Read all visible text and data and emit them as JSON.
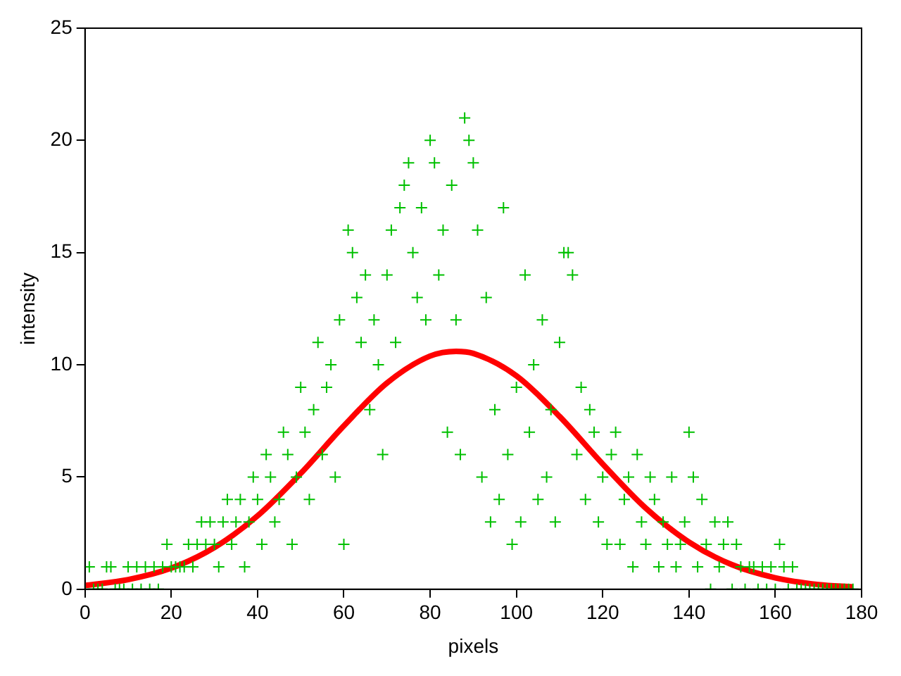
{
  "chart_data": {
    "type": "scatter",
    "xlabel": "pixels",
    "ylabel": "intensity",
    "xlim": [
      0,
      180
    ],
    "xticks": [
      0,
      20,
      40,
      60,
      80,
      100,
      120,
      140,
      160,
      180
    ],
    "ylim": [
      0,
      25
    ],
    "yticks": [
      0,
      5,
      10,
      15,
      20,
      25
    ],
    "grid": false,
    "legend": false,
    "marker": "cross",
    "series": [
      {
        "color": "#00c000",
        "x": [
          0,
          1,
          2,
          3,
          4,
          5,
          6,
          7,
          8,
          9,
          10,
          11,
          12,
          13,
          14,
          15,
          16,
          17,
          18,
          19,
          20,
          21,
          22,
          23,
          24,
          25,
          26,
          27,
          28,
          29,
          30,
          31,
          32,
          33,
          34,
          35,
          36,
          37,
          38,
          39,
          40,
          41,
          42,
          43,
          44,
          45,
          46,
          47,
          48,
          49,
          50,
          51,
          52,
          53,
          54,
          55,
          56,
          57,
          58,
          59,
          60,
          61,
          62,
          63,
          64,
          65,
          66,
          67,
          68,
          69,
          70,
          71,
          72,
          73,
          74,
          75,
          76,
          77,
          78,
          79,
          80,
          81,
          82,
          83,
          84,
          85,
          86,
          87,
          88,
          89,
          90,
          91,
          92,
          93,
          94,
          95,
          96,
          97,
          98,
          99,
          100,
          101,
          102,
          103,
          104,
          105,
          106,
          107,
          108,
          109,
          110,
          111,
          112,
          113,
          114,
          115,
          116,
          117,
          118,
          119,
          120,
          121,
          122,
          123,
          124,
          125,
          126,
          127,
          128,
          129,
          130,
          131,
          132,
          133,
          134,
          135,
          136,
          137,
          138,
          139,
          140,
          141,
          142,
          143,
          144,
          145,
          146,
          147,
          148,
          149,
          150,
          151,
          152,
          153,
          154,
          155,
          156,
          157,
          158,
          159,
          160,
          161,
          162,
          163,
          164,
          165,
          166,
          167,
          168,
          169,
          170,
          171,
          172,
          173,
          174,
          175,
          176,
          177,
          178
        ],
        "values": [
          0,
          1,
          0,
          0,
          0,
          1,
          1,
          0,
          0,
          0,
          1,
          0,
          1,
          0,
          1,
          0,
          1,
          0,
          1,
          2,
          1,
          1,
          1,
          1,
          2,
          1,
          2,
          3,
          2,
          3,
          2,
          1,
          3,
          4,
          2,
          3,
          4,
          1,
          3,
          5,
          4,
          2,
          6,
          5,
          3,
          4,
          7,
          6,
          2,
          5,
          9,
          7,
          4,
          8,
          11,
          6,
          9,
          10,
          5,
          12,
          2,
          16,
          15,
          13,
          11,
          14,
          8,
          12,
          10,
          6,
          14,
          16,
          11,
          17,
          18,
          19,
          15,
          13,
          17,
          12,
          20,
          19,
          14,
          16,
          7,
          18,
          12,
          6,
          21,
          20,
          19,
          16,
          5,
          13,
          3,
          8,
          4,
          17,
          6,
          2,
          9,
          3,
          14,
          7,
          10,
          4,
          12,
          5,
          8,
          3,
          11,
          15,
          15,
          14,
          6,
          9,
          4,
          8,
          7,
          3,
          5,
          2,
          6,
          7,
          2,
          4,
          5,
          1,
          6,
          3,
          2,
          5,
          4,
          1,
          3,
          2,
          5,
          1,
          2,
          3,
          7,
          5,
          1,
          4,
          2,
          0,
          3,
          1,
          2,
          3,
          0,
          2,
          1,
          0,
          1,
          1,
          0,
          1,
          0,
          1,
          0,
          2,
          1,
          0,
          1,
          0,
          0,
          0,
          0,
          0,
          0,
          0,
          0,
          0,
          0,
          0,
          0,
          0,
          0
        ]
      },
      {
        "type": "line",
        "color": "#ff0000",
        "marker": "none",
        "x": [
          0,
          10,
          20,
          30,
          40,
          50,
          60,
          70,
          80,
          86,
          90,
          100,
          110,
          120,
          130,
          140,
          150,
          160,
          170,
          178
        ],
        "values": [
          0.17,
          0.43,
          0.94,
          1.86,
          3.27,
          5.16,
          7.28,
          9.19,
          10.39,
          10.6,
          10.51,
          9.51,
          7.7,
          5.58,
          3.61,
          2.1,
          1.09,
          0.51,
          0.21,
          0.1
        ]
      }
    ]
  }
}
